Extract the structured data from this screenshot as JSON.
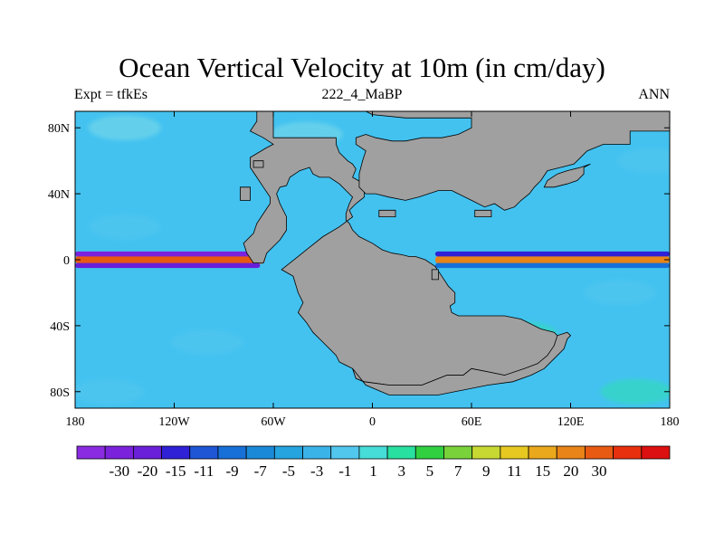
{
  "title": "Ocean Vertical Velocity at 10m (in cm/day)",
  "subtitle_left": "Expt = tfkEs",
  "subtitle_center": "222_4_MaBP",
  "subtitle_right": "ANN",
  "map": {
    "projection": "cylindrical-equidistant",
    "lon_range": [
      -180,
      180
    ],
    "lat_range": [
      -90,
      90
    ],
    "lon_ticks": [
      {
        "value": -180,
        "label": "180"
      },
      {
        "value": -120,
        "label": "120W"
      },
      {
        "value": -60,
        "label": "60W"
      },
      {
        "value": 0,
        "label": "0"
      },
      {
        "value": 60,
        "label": "60E"
      },
      {
        "value": 120,
        "label": "120E"
      },
      {
        "value": 180,
        "label": "180"
      }
    ],
    "lat_ticks": [
      {
        "value": 80,
        "label": "80N"
      },
      {
        "value": 40,
        "label": "40N"
      },
      {
        "value": 0,
        "label": "0"
      },
      {
        "value": -40,
        "label": "40S"
      },
      {
        "value": -80,
        "label": "80S"
      }
    ],
    "land_color": "#a0a0a0",
    "ocean_base_color": "#43c2f0",
    "continents": [
      {
        "name": "western-continent",
        "outline": [
          [
            -70,
            90
          ],
          [
            -60,
            90
          ],
          [
            -60,
            74
          ],
          [
            -22,
            74
          ],
          [
            -22,
            70
          ],
          [
            -20,
            65
          ],
          [
            -15,
            60
          ],
          [
            -12,
            58
          ],
          [
            -10,
            55
          ],
          [
            -12,
            50
          ],
          [
            -5,
            46
          ],
          [
            -5,
            38
          ],
          [
            -10,
            34
          ],
          [
            -14,
            30
          ],
          [
            -12,
            26
          ],
          [
            -20,
            20
          ],
          [
            -30,
            14
          ],
          [
            -40,
            6
          ],
          [
            -45,
            2
          ],
          [
            -55,
            -6
          ],
          [
            -48,
            -10
          ],
          [
            -45,
            -20
          ],
          [
            -42,
            -26
          ],
          [
            -45,
            -32
          ],
          [
            -40,
            -38
          ],
          [
            -36,
            -44
          ],
          [
            -30,
            -50
          ],
          [
            -22,
            -58
          ],
          [
            -20,
            -62
          ],
          [
            -12,
            -66
          ],
          [
            -10,
            -72
          ],
          [
            -5,
            -74
          ],
          [
            10,
            -76
          ],
          [
            30,
            -76
          ],
          [
            45,
            -70
          ],
          [
            55,
            -70
          ],
          [
            60,
            -66
          ],
          [
            70,
            -68
          ],
          [
            80,
            -70
          ],
          [
            95,
            -66
          ],
          [
            102,
            -64
          ],
          [
            108,
            -60
          ],
          [
            110,
            -52
          ],
          [
            114,
            -48
          ],
          [
            110,
            -44
          ],
          [
            102,
            -42
          ],
          [
            90,
            -36
          ],
          [
            80,
            -34
          ],
          [
            70,
            -34
          ],
          [
            52,
            -34
          ],
          [
            48,
            -32
          ],
          [
            47,
            -28
          ],
          [
            50,
            -26
          ],
          [
            50,
            -20
          ],
          [
            46,
            -16
          ],
          [
            42,
            -10
          ],
          [
            38,
            -4
          ],
          [
            32,
            0
          ],
          [
            26,
            2
          ],
          [
            22,
            2
          ],
          [
            18,
            3
          ],
          [
            12,
            4
          ],
          [
            6,
            6
          ],
          [
            0,
            10
          ],
          [
            -8,
            14
          ],
          [
            -12,
            18
          ],
          [
            -14,
            22
          ],
          [
            -16,
            24
          ],
          [
            -16,
            28
          ],
          [
            -14,
            34
          ],
          [
            -12,
            38
          ],
          [
            -16,
            42
          ],
          [
            -20,
            46
          ],
          [
            -26,
            50
          ],
          [
            -32,
            50
          ],
          [
            -36,
            52
          ],
          [
            -38,
            56
          ],
          [
            -44,
            54
          ],
          [
            -50,
            50
          ],
          [
            -52,
            45
          ],
          [
            -56,
            44
          ],
          [
            -58,
            40
          ],
          [
            -56,
            34
          ],
          [
            -52,
            26
          ],
          [
            -52,
            18
          ],
          [
            -56,
            12
          ],
          [
            -64,
            4
          ],
          [
            -66,
            -2
          ],
          [
            -72,
            -2
          ],
          [
            -76,
            4
          ],
          [
            -78,
            10
          ],
          [
            -72,
            16
          ],
          [
            -70,
            22
          ],
          [
            -66,
            28
          ],
          [
            -62,
            34
          ],
          [
            -62,
            38
          ],
          [
            -66,
            44
          ],
          [
            -70,
            50
          ],
          [
            -74,
            56
          ],
          [
            -74,
            62
          ],
          [
            -64,
            68
          ],
          [
            -60,
            70
          ],
          [
            -66,
            74
          ],
          [
            -74,
            78
          ],
          [
            -70,
            84
          ]
        ]
      },
      {
        "name": "eastern-continent",
        "outline": [
          [
            -4,
            90
          ],
          [
            180,
            90
          ],
          [
            180,
            78
          ],
          [
            156,
            78
          ],
          [
            156,
            70
          ],
          [
            140,
            70
          ],
          [
            130,
            66
          ],
          [
            122,
            58
          ],
          [
            114,
            56
          ],
          [
            106,
            54
          ],
          [
            102,
            48
          ],
          [
            98,
            44
          ],
          [
            95,
            40
          ],
          [
            90,
            36
          ],
          [
            86,
            32
          ],
          [
            80,
            30
          ],
          [
            74,
            34
          ],
          [
            68,
            32
          ],
          [
            60,
            36
          ],
          [
            52,
            40
          ],
          [
            48,
            42
          ],
          [
            40,
            42
          ],
          [
            34,
            40
          ],
          [
            28,
            38
          ],
          [
            20,
            36
          ],
          [
            10,
            38
          ],
          [
            2,
            40
          ],
          [
            -4,
            40
          ],
          [
            -8,
            44
          ],
          [
            -8,
            52
          ],
          [
            -6,
            60
          ],
          [
            -4,
            66
          ],
          [
            -10,
            70
          ],
          [
            -10,
            74
          ],
          [
            -4,
            76
          ],
          [
            2,
            74
          ],
          [
            12,
            72
          ],
          [
            20,
            72
          ],
          [
            30,
            74
          ],
          [
            42,
            74
          ],
          [
            52,
            76
          ],
          [
            60,
            80
          ],
          [
            60,
            86
          ],
          [
            20,
            86
          ],
          [
            0,
            88
          ]
        ]
      },
      {
        "name": "east-peninsula",
        "outline": [
          [
            104,
            44
          ],
          [
            110,
            44
          ],
          [
            118,
            46
          ],
          [
            124,
            48
          ],
          [
            128,
            52
          ],
          [
            128,
            56
          ],
          [
            132,
            58
          ],
          [
            126,
            56
          ],
          [
            118,
            54
          ],
          [
            112,
            52
          ],
          [
            106,
            48
          ]
        ]
      },
      {
        "name": "southern-land-mass",
        "outline": [
          [
            -12,
            -66
          ],
          [
            -4,
            -76
          ],
          [
            10,
            -82
          ],
          [
            40,
            -82
          ],
          [
            70,
            -76
          ],
          [
            85,
            -74
          ],
          [
            96,
            -70
          ],
          [
            104,
            -66
          ],
          [
            110,
            -60
          ],
          [
            116,
            -54
          ],
          [
            118,
            -48
          ],
          [
            120,
            -46
          ],
          [
            118,
            -44
          ],
          [
            112,
            -46
          ],
          [
            110,
            -52
          ],
          [
            106,
            -58
          ],
          [
            100,
            -63
          ],
          [
            92,
            -66
          ],
          [
            80,
            -70
          ],
          [
            70,
            -68
          ],
          [
            60,
            -66
          ],
          [
            55,
            -70
          ],
          [
            45,
            -70
          ],
          [
            30,
            -76
          ],
          [
            10,
            -76
          ],
          [
            -5,
            -74
          ],
          [
            -10,
            -72
          ]
        ]
      }
    ],
    "islands": [
      {
        "name": "island-1",
        "outline": [
          [
            -72,
            60
          ],
          [
            -66,
            60
          ],
          [
            -66,
            56
          ],
          [
            -72,
            56
          ]
        ]
      },
      {
        "name": "island-2",
        "outline": [
          [
            -80,
            44
          ],
          [
            -74,
            44
          ],
          [
            -74,
            36
          ],
          [
            -80,
            36
          ]
        ]
      },
      {
        "name": "island-3",
        "outline": [
          [
            4,
            30
          ],
          [
            14,
            30
          ],
          [
            14,
            26
          ],
          [
            4,
            26
          ]
        ]
      },
      {
        "name": "island-4",
        "outline": [
          [
            62,
            30
          ],
          [
            72,
            30
          ],
          [
            72,
            26
          ],
          [
            62,
            26
          ]
        ]
      },
      {
        "name": "island-5",
        "outline": [
          [
            36,
            -6
          ],
          [
            40,
            -6
          ],
          [
            40,
            -12
          ],
          [
            36,
            -12
          ]
        ]
      }
    ],
    "features": [
      {
        "name": "equatorial-upwelling-east-pacific",
        "type": "band",
        "lat": 0,
        "lon_from": -180,
        "lon_to": -65,
        "level": 30,
        "width_deg": 5
      },
      {
        "name": "equatorial-downwelling-north-east-pacific",
        "type": "band",
        "lat": 3.5,
        "lon_from": -180,
        "lon_to": -68,
        "level": -30,
        "width_deg": 3
      },
      {
        "name": "equatorial-downwelling-south-east-pacific",
        "type": "band",
        "lat": -3.5,
        "lon_from": -180,
        "lon_to": -68,
        "level": -20,
        "width_deg": 3
      },
      {
        "name": "equatorial-upwelling-indo-pacific",
        "type": "band",
        "lat": 0,
        "lon_from": 38,
        "lon_to": 180,
        "level": 20,
        "width_deg": 5
      },
      {
        "name": "equatorial-downwelling-north-indo-pacific",
        "type": "band",
        "lat": 3.5,
        "lon_from": 38,
        "lon_to": 180,
        "level": -15,
        "width_deg": 3
      },
      {
        "name": "equatorial-downwelling-south-indo-pacific",
        "type": "band",
        "lat": -3.5,
        "lon_from": 38,
        "lon_to": 180,
        "level": -9,
        "width_deg": 3
      }
    ]
  },
  "colorbar": {
    "colors": [
      "#8a2be2",
      "#7b22dd",
      "#6a1fd8",
      "#2f21d6",
      "#1e56d6",
      "#1770d8",
      "#1a8ad8",
      "#26a4e0",
      "#3ab4e8",
      "#52c7ee",
      "#46dcd8",
      "#28e0a0",
      "#30d040",
      "#7ad23a",
      "#c8d832",
      "#e6c820",
      "#eaa81c",
      "#e88418",
      "#e85a12",
      "#e8300e",
      "#dc1010"
    ],
    "labels": [
      "-30",
      "-20",
      "-15",
      "-11",
      "-9",
      "-7",
      "-5",
      "-3",
      "-1",
      "1",
      "3",
      "5",
      "7",
      "9",
      "11",
      "15",
      "20",
      "30"
    ]
  }
}
